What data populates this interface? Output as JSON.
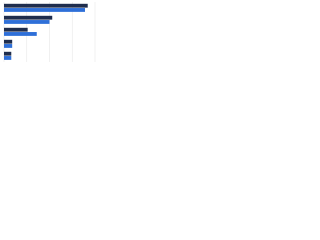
{
  "chart_data": {
    "type": "hbar",
    "categories": [
      null,
      null,
      null,
      null,
      null
    ],
    "series": [
      {
        "color": "#1f2d4d",
        "values": [
          92,
          53,
          26,
          9,
          8
        ]
      },
      {
        "color": "#2e6fd8",
        "values": [
          89,
          50,
          36,
          9,
          8
        ]
      }
    ],
    "xlim": [
      0,
      100
    ],
    "xticks": [
      0,
      25,
      50,
      75,
      100
    ],
    "grid": true
  }
}
